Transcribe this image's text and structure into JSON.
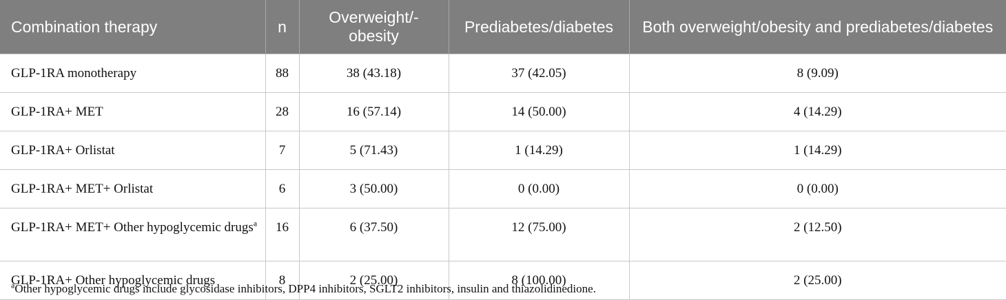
{
  "table": {
    "headers": [
      "Combination therapy",
      "n",
      "Overweight/­obesity",
      "Prediabetes/diabe­tes",
      "Both overweight/obesity and prediabetes/dia­betes"
    ],
    "rows": [
      {
        "therapy": "GLP-1RA monotherapy",
        "sup": "",
        "n": "88",
        "overweight": "38 (43.18)",
        "prediabetes": "37 (42.05)",
        "both": "8 (9.09)"
      },
      {
        "therapy": "GLP-1RA+ MET",
        "sup": "",
        "n": "28",
        "overweight": "16 (57.14)",
        "prediabetes": "14 (50.00)",
        "both": "4 (14.29)"
      },
      {
        "therapy": "GLP-1RA+ Orlistat",
        "sup": "",
        "n": "7",
        "overweight": "5 (71.43)",
        "prediabetes": "1 (14.29)",
        "both": "1 (14.29)"
      },
      {
        "therapy": "GLP-1RA+ MET+ Orlistat",
        "sup": "",
        "n": "6",
        "overweight": "3 (50.00)",
        "prediabetes": "0 (0.00)",
        "both": "0 (0.00)"
      },
      {
        "therapy": "GLP-1RA+ MET+ Other hypoglycemic drugs",
        "sup": "a",
        "n": "16",
        "overweight": "6 (37.50)",
        "prediabetes": "12 (75.00)",
        "both": "2 (12.50)"
      },
      {
        "therapy": "GLP-1RA+ Other hypoglycemic drugs",
        "sup": "",
        "n": "8",
        "overweight": "2 (25.00)",
        "prediabetes": "8 (100.00)",
        "both": "2 (25.00)"
      }
    ]
  },
  "footnote": {
    "marker": "a",
    "text": "Other hypoglycemic drugs include glycosidase inhibitors, DPP4 inhibitors, SGLT2 inhibitors, insulin and thiazolidinedione."
  }
}
